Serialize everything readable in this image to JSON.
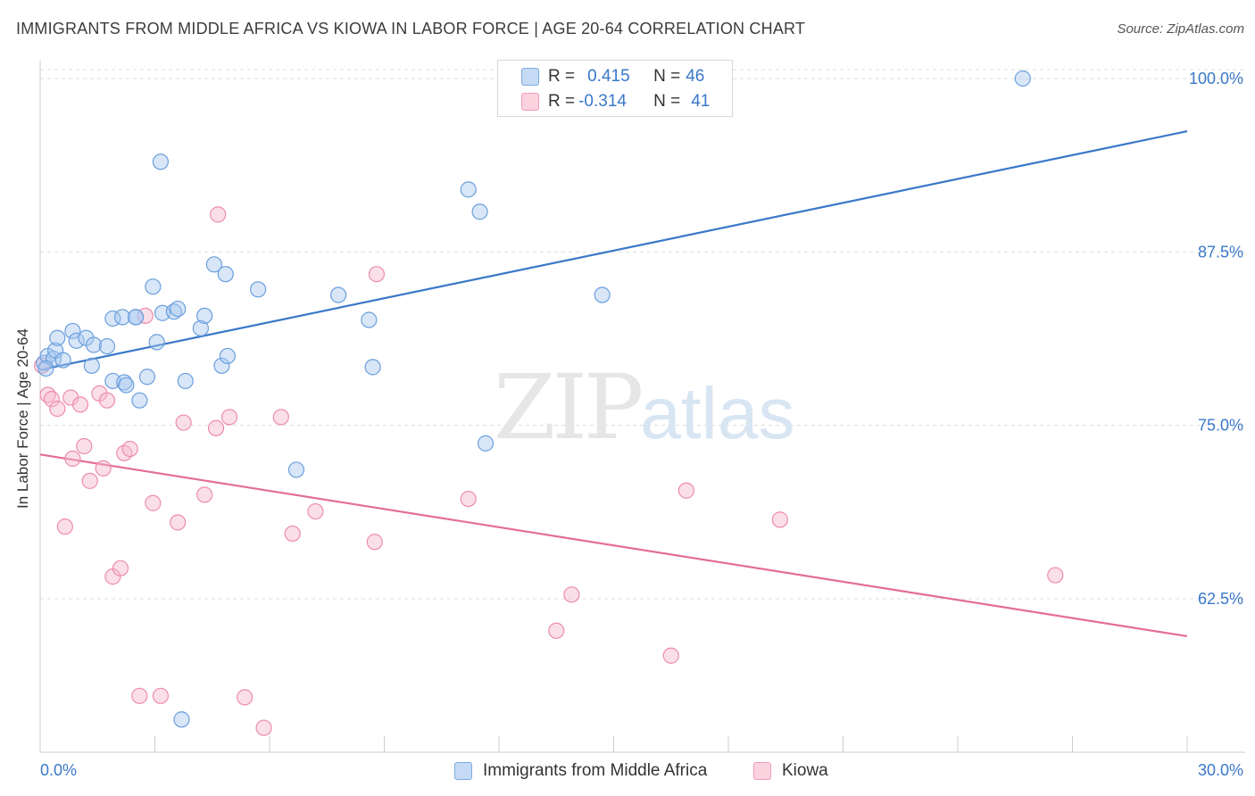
{
  "header": {
    "title": "IMMIGRANTS FROM MIDDLE AFRICA VS KIOWA IN LABOR FORCE | AGE 20-64 CORRELATION CHART",
    "source": "Source: ZipAtlas.com"
  },
  "watermark": {
    "zip": "ZIP",
    "atlas": "atlas"
  },
  "legend": {
    "rows": [
      {
        "r_label": "R = ",
        "r_value": "0.415",
        "n_label": "N = ",
        "n_value": "46",
        "color": "#a8c8f0"
      },
      {
        "r_label": "R = ",
        "r_value": "-0.314",
        "n_label": "N = ",
        "n_value": "41",
        "color": "#f6b8cb"
      }
    ]
  },
  "bottom_legend": {
    "series_a": "Immigrants from Middle Africa",
    "series_b": "Kiowa"
  },
  "chart_data": {
    "type": "scatter",
    "title": "IMMIGRANTS FROM MIDDLE AFRICA VS KIOWA IN LABOR FORCE | AGE 20-64 CORRELATION CHART",
    "xlabel": "",
    "ylabel": "In Labor Force | Age 20-64",
    "xlim": [
      0,
      30
    ],
    "ylim": [
      52.5,
      101
    ],
    "x_tick_labels": [
      "0.0%",
      "30.0%"
    ],
    "y_ticks": [
      62.5,
      75.0,
      87.5,
      100.0
    ],
    "y_tick_labels": [
      "62.5%",
      "75.0%",
      "87.5%",
      "100.0%"
    ],
    "grid": true,
    "legend_position": "top-center",
    "colors": {
      "blue": "#3a78c9",
      "blue_fill": "#a8c8f0",
      "pink": "#e46d98",
      "pink_fill": "#f6b8cb"
    },
    "series": [
      {
        "name": "Immigrants from Middle Africa",
        "color": "#3a78c9",
        "points": [
          [
            0.1,
            79.5
          ],
          [
            0.2,
            80.0
          ],
          [
            0.35,
            79.8
          ],
          [
            0.4,
            80.4
          ],
          [
            0.45,
            81.3
          ],
          [
            0.6,
            79.7
          ],
          [
            0.85,
            81.8
          ],
          [
            0.95,
            81.1
          ],
          [
            1.2,
            81.3
          ],
          [
            1.4,
            80.8
          ],
          [
            1.75,
            80.7
          ],
          [
            1.35,
            79.3
          ],
          [
            1.9,
            82.7
          ],
          [
            2.15,
            82.8
          ],
          [
            2.5,
            82.8
          ],
          [
            1.9,
            78.2
          ],
          [
            2.2,
            78.1
          ],
          [
            2.25,
            77.9
          ],
          [
            2.6,
            76.8
          ],
          [
            2.8,
            78.5
          ],
          [
            3.05,
            81.0
          ],
          [
            2.95,
            85.0
          ],
          [
            3.2,
            83.1
          ],
          [
            3.5,
            83.2
          ],
          [
            3.6,
            83.4
          ],
          [
            3.8,
            78.2
          ],
          [
            4.2,
            82.0
          ],
          [
            4.3,
            82.9
          ],
          [
            4.55,
            86.6
          ],
          [
            4.75,
            79.3
          ],
          [
            4.85,
            85.9
          ],
          [
            4.9,
            80.0
          ],
          [
            5.7,
            84.8
          ],
          [
            3.15,
            94.0
          ],
          [
            3.7,
            53.8
          ],
          [
            6.7,
            71.8
          ],
          [
            7.8,
            84.4
          ],
          [
            8.6,
            82.6
          ],
          [
            8.7,
            79.2
          ],
          [
            11.2,
            92.0
          ],
          [
            11.5,
            90.4
          ],
          [
            11.65,
            73.7
          ],
          [
            14.7,
            84.4
          ],
          [
            25.7,
            100.0
          ],
          [
            0.15,
            79.1
          ],
          [
            2.5,
            82.8
          ]
        ],
        "trend": {
          "x": [
            0,
            30
          ],
          "y": [
            79.0,
            96.2
          ]
        }
      },
      {
        "name": "Kiowa",
        "color": "#e46d98",
        "points": [
          [
            0.05,
            79.3
          ],
          [
            0.2,
            77.2
          ],
          [
            0.3,
            76.9
          ],
          [
            0.45,
            76.2
          ],
          [
            0.65,
            67.7
          ],
          [
            0.8,
            77.0
          ],
          [
            0.85,
            72.6
          ],
          [
            1.05,
            76.5
          ],
          [
            1.15,
            73.5
          ],
          [
            1.3,
            71.0
          ],
          [
            1.55,
            77.3
          ],
          [
            1.65,
            71.9
          ],
          [
            1.75,
            76.8
          ],
          [
            1.9,
            64.1
          ],
          [
            2.1,
            64.7
          ],
          [
            2.2,
            73.0
          ],
          [
            2.35,
            73.3
          ],
          [
            2.6,
            55.5
          ],
          [
            2.75,
            82.9
          ],
          [
            2.95,
            69.4
          ],
          [
            3.15,
            55.5
          ],
          [
            3.6,
            68.0
          ],
          [
            3.75,
            75.2
          ],
          [
            4.3,
            70.0
          ],
          [
            4.6,
            74.8
          ],
          [
            4.65,
            90.2
          ],
          [
            4.95,
            75.6
          ],
          [
            5.35,
            55.4
          ],
          [
            5.85,
            53.2
          ],
          [
            6.3,
            75.6
          ],
          [
            6.6,
            67.2
          ],
          [
            7.2,
            68.8
          ],
          [
            8.75,
            66.6
          ],
          [
            8.8,
            85.9
          ],
          [
            11.2,
            69.7
          ],
          [
            13.5,
            60.2
          ],
          [
            13.9,
            62.8
          ],
          [
            16.5,
            58.4
          ],
          [
            16.9,
            70.3
          ],
          [
            19.35,
            68.2
          ],
          [
            26.55,
            64.2
          ]
        ],
        "trend": {
          "x": [
            0,
            30
          ],
          "y": [
            72.9,
            59.8
          ]
        }
      }
    ]
  }
}
